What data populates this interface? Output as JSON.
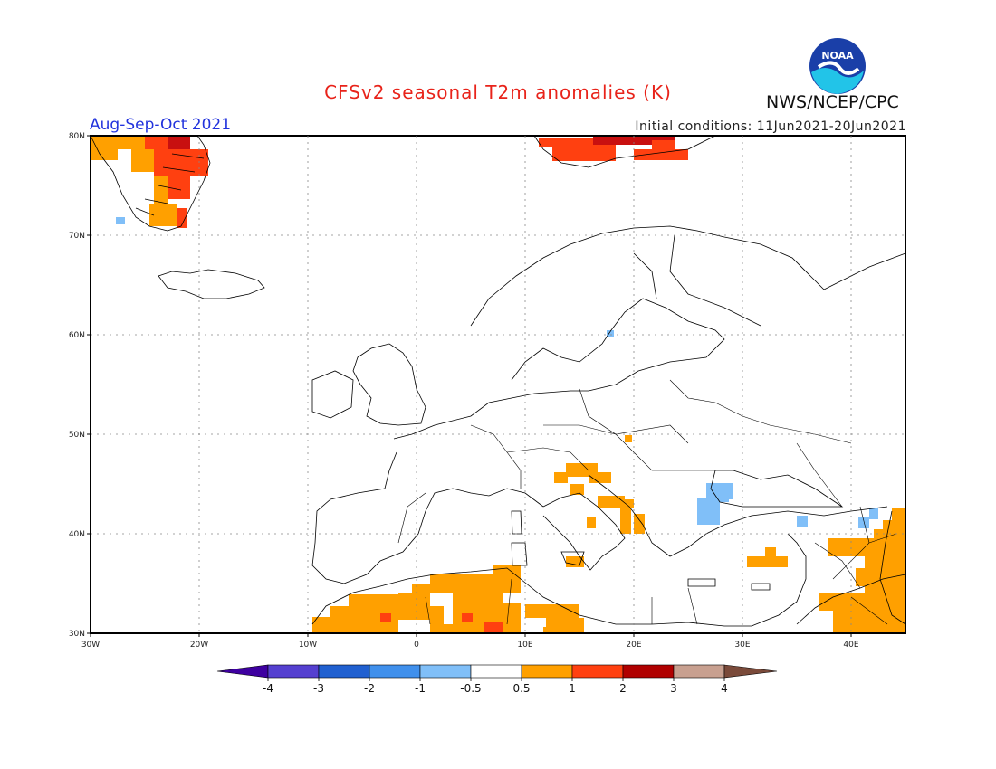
{
  "map": {
    "title": "CFSv2 seasonal T2m anomalies (K)",
    "period": "Aug-Sep-Oct 2021",
    "initial_conditions": "Initial conditions: 11Jun2021-20Jun2021",
    "agency": "NWS/NCEP/CPC",
    "logo_text": "NOAA",
    "lon_range": [
      -30,
      45
    ],
    "lat_range": [
      30,
      80
    ],
    "lon_ticks": [
      "30W",
      "20W",
      "10W",
      "0",
      "10E",
      "20E",
      "30E",
      "40E"
    ],
    "lat_ticks": [
      "80N",
      "70N",
      "60N",
      "50N",
      "40N",
      "30N"
    ],
    "grid": "dotted"
  },
  "colorbar": {
    "labels": [
      "-4",
      "-3",
      "-2",
      "-1",
      "-0.5",
      "0.5",
      "1",
      "2",
      "3",
      "4"
    ],
    "colors": [
      "#3e00a0",
      "#5540d0",
      "#2060d0",
      "#4090ec",
      "#80bff8",
      "#ffffff",
      "#ffa000",
      "#ff4010",
      "#b00000",
      "#c8a090",
      "#7a4a3a"
    ]
  },
  "anomaly_colors": {
    "light_blue": "#80bff8",
    "orange": "#ffa000",
    "red": "#ff4010",
    "dark_red": "#c81010"
  }
}
